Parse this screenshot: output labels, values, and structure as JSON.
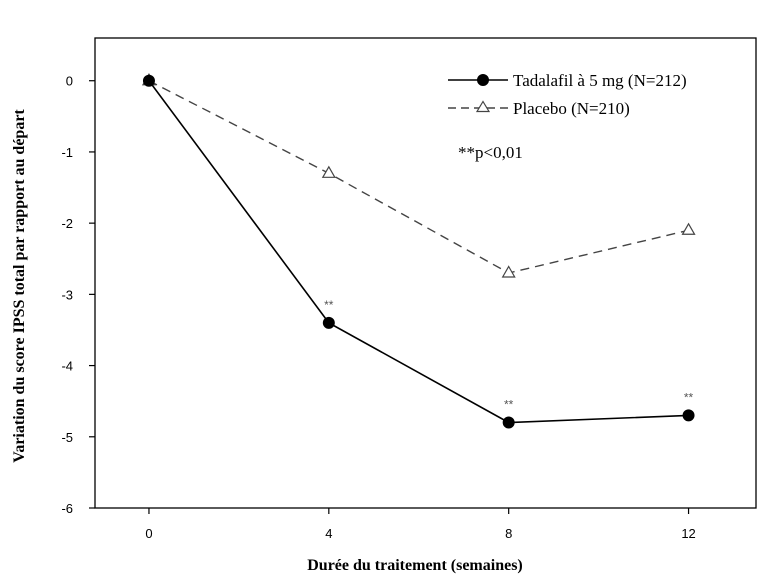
{
  "chart_data": {
    "type": "line",
    "xlabel": "Durée du traitement (semaines)",
    "ylabel": "Variation du score IPSS total par rapport au départ",
    "x": [
      0,
      4,
      8,
      12
    ],
    "xticks": [
      "0",
      "4",
      "8",
      "12"
    ],
    "yticks": [
      "0",
      "-1",
      "-2",
      "-3",
      "-4",
      "-5",
      "-6"
    ],
    "xlim": [
      -1.2,
      13.5
    ],
    "ylim": [
      -6,
      0.6
    ],
    "grid": false,
    "legend_position": "top-right",
    "series": [
      {
        "name": "Tadalafil à 5 mg (N=212)",
        "values": [
          0,
          -3.4,
          -4.8,
          -4.7
        ],
        "significance": [
          "",
          "**",
          "**",
          "**"
        ],
        "line_style": "solid",
        "marker": "filled-circle",
        "color": "#000000"
      },
      {
        "name": "Placebo (N=210)",
        "values": [
          0,
          -1.3,
          -2.7,
          -2.1
        ],
        "line_style": "dashed",
        "marker": "open-triangle",
        "color": "#444444"
      }
    ],
    "annotation": "**p<0,01"
  }
}
